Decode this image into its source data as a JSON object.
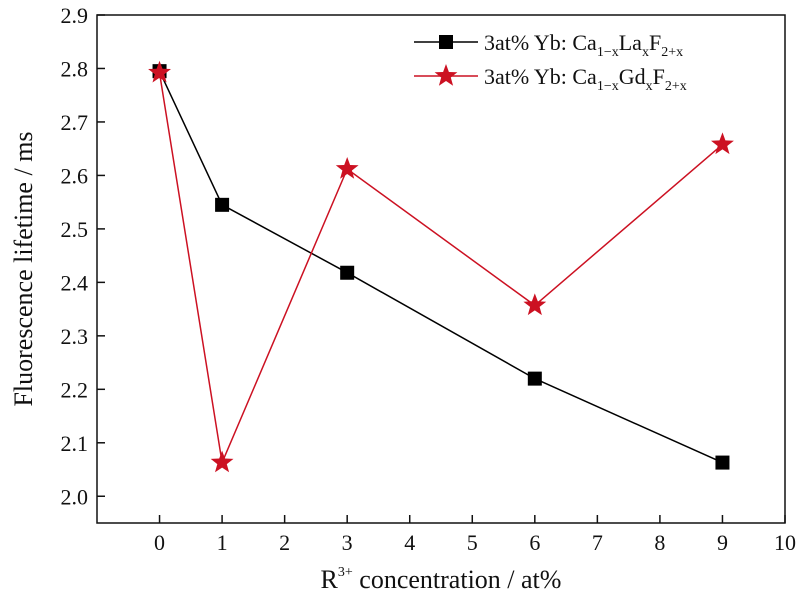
{
  "chart_data": {
    "type": "line",
    "xlabel": {
      "base": "R",
      "sup": "3+",
      "rest": " concentration / at%"
    },
    "ylabel": "Fluorescence lifetime / ms",
    "xlim": [
      -1,
      10
    ],
    "ylim": [
      1.95,
      2.9
    ],
    "xticks": [
      0,
      1,
      2,
      3,
      4,
      5,
      6,
      7,
      8,
      9,
      10
    ],
    "yticks": [
      2.0,
      2.1,
      2.2,
      2.3,
      2.4,
      2.5,
      2.6,
      2.7,
      2.8,
      2.9
    ],
    "grid": false,
    "legend_position": "top-right",
    "series": [
      {
        "legend": {
          "prefix": "3at% Yb: Ca",
          "sub1": "1−x",
          "el": "La",
          "sub2": "x",
          "f": "F",
          "sub3": "2+x"
        },
        "marker": "square",
        "color": "#000000",
        "x": [
          0,
          1,
          3,
          6,
          9
        ],
        "y": [
          2.795,
          2.545,
          2.418,
          2.22,
          2.063
        ]
      },
      {
        "legend": {
          "prefix": "3at% Yb: Ca",
          "sub1": "1−x",
          "el": "Gd",
          "sub2": "x",
          "f": "F",
          "sub3": "2+x"
        },
        "marker": "star",
        "color": "#cc1122",
        "x": [
          0,
          1,
          3,
          6,
          9
        ],
        "y": [
          2.792,
          2.063,
          2.612,
          2.357,
          2.658
        ]
      }
    ]
  }
}
